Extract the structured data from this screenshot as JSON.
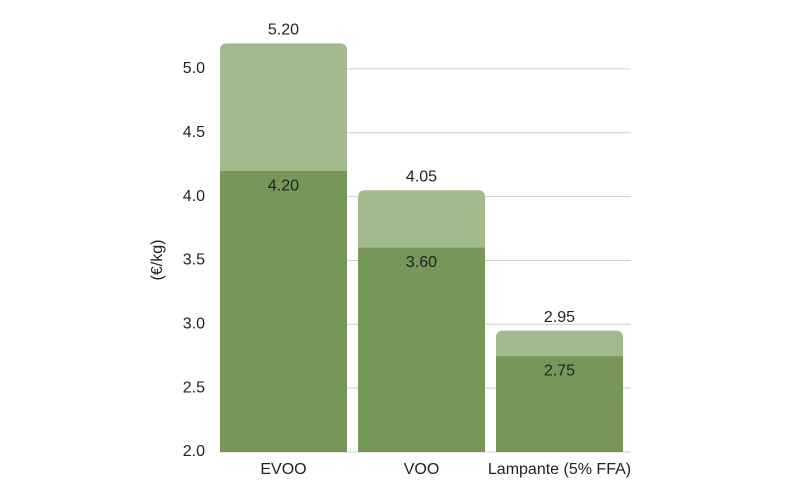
{
  "chart_data": {
    "type": "bar",
    "y_label": "(€/kg)",
    "categories": [
      "EVOO",
      "VOO",
      "Lampante (5% FFA)"
    ],
    "series": [
      {
        "color": "#a3b98e",
        "values": [
          5.2,
          4.05,
          2.95
        ],
        "value_labels": [
          "5.20",
          "4.05",
          "2.95"
        ]
      },
      {
        "color": "#76965a",
        "values": [
          4.2,
          3.6,
          2.75
        ],
        "value_labels": [
          "4.20",
          "3.60",
          "2.75"
        ]
      }
    ],
    "ylim": [
      2,
      5.3
    ],
    "yticks": [
      {
        "value": 2,
        "label": "2.0"
      },
      {
        "value": 2.5,
        "label": "2.5"
      },
      {
        "value": 3,
        "label": "3.0"
      },
      {
        "value": 3.5,
        "label": "3.5"
      },
      {
        "value": 4,
        "label": "4.0"
      },
      {
        "value": 4.5,
        "label": "4.5"
      },
      {
        "value": 5,
        "label": "5.0"
      }
    ],
    "grid": true
  }
}
